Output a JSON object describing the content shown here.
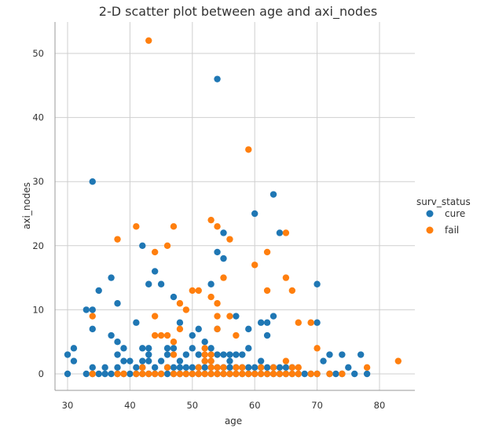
{
  "chart_data": {
    "type": "scatter",
    "title": "2-D scatter plot between age and axi_nodes",
    "xlabel": "age",
    "ylabel": "axi_nodes",
    "xlim": [
      28,
      86
    ],
    "ylim": [
      -2.5,
      55
    ],
    "xticks": [
      30,
      40,
      50,
      60,
      70,
      80
    ],
    "yticks": [
      0,
      10,
      20,
      30,
      40,
      50
    ],
    "grid": true,
    "legend": {
      "title": "surv_status",
      "placement": "right"
    },
    "series": [
      {
        "name": "cure",
        "color": "#1f77b4",
        "points": [
          [
            30,
            0
          ],
          [
            30,
            3
          ],
          [
            31,
            2
          ],
          [
            31,
            4
          ],
          [
            33,
            0
          ],
          [
            33,
            10
          ],
          [
            34,
            0
          ],
          [
            34,
            1
          ],
          [
            34,
            7
          ],
          [
            34,
            10
          ],
          [
            34,
            30
          ],
          [
            35,
            0
          ],
          [
            35,
            13
          ],
          [
            36,
            0
          ],
          [
            36,
            1
          ],
          [
            37,
            0
          ],
          [
            37,
            6
          ],
          [
            37,
            15
          ],
          [
            38,
            0
          ],
          [
            38,
            1
          ],
          [
            38,
            3
          ],
          [
            38,
            5
          ],
          [
            38,
            11
          ],
          [
            39,
            0
          ],
          [
            39,
            2
          ],
          [
            39,
            4
          ],
          [
            40,
            0
          ],
          [
            40,
            2
          ],
          [
            41,
            0
          ],
          [
            41,
            1
          ],
          [
            41,
            8
          ],
          [
            42,
            0
          ],
          [
            42,
            1
          ],
          [
            42,
            2
          ],
          [
            42,
            4
          ],
          [
            42,
            20
          ],
          [
            43,
            0
          ],
          [
            43,
            2
          ],
          [
            43,
            3
          ],
          [
            43,
            4
          ],
          [
            43,
            14
          ],
          [
            44,
            0
          ],
          [
            44,
            1
          ],
          [
            44,
            16
          ],
          [
            45,
            0
          ],
          [
            45,
            2
          ],
          [
            45,
            14
          ],
          [
            46,
            0
          ],
          [
            46,
            1
          ],
          [
            46,
            3
          ],
          [
            46,
            4
          ],
          [
            47,
            0
          ],
          [
            47,
            1
          ],
          [
            47,
            4
          ],
          [
            47,
            12
          ],
          [
            48,
            0
          ],
          [
            48,
            1
          ],
          [
            48,
            2
          ],
          [
            48,
            8
          ],
          [
            49,
            0
          ],
          [
            49,
            1
          ],
          [
            49,
            3
          ],
          [
            50,
            0
          ],
          [
            50,
            1
          ],
          [
            50,
            4
          ],
          [
            50,
            6
          ],
          [
            51,
            0
          ],
          [
            51,
            1
          ],
          [
            51,
            3
          ],
          [
            51,
            7
          ],
          [
            52,
            0
          ],
          [
            52,
            1
          ],
          [
            52,
            2
          ],
          [
            52,
            5
          ],
          [
            53,
            0
          ],
          [
            53,
            1
          ],
          [
            53,
            2
          ],
          [
            53,
            4
          ],
          [
            53,
            14
          ],
          [
            54,
            0
          ],
          [
            54,
            1
          ],
          [
            54,
            3
          ],
          [
            54,
            7
          ],
          [
            54,
            19
          ],
          [
            54,
            46
          ],
          [
            55,
            0
          ],
          [
            55,
            1
          ],
          [
            55,
            3
          ],
          [
            55,
            18
          ],
          [
            55,
            22
          ],
          [
            56,
            0
          ],
          [
            56,
            1
          ],
          [
            56,
            2
          ],
          [
            56,
            3
          ],
          [
            57,
            0
          ],
          [
            57,
            1
          ],
          [
            57,
            3
          ],
          [
            57,
            9
          ],
          [
            58,
            0
          ],
          [
            58,
            1
          ],
          [
            58,
            3
          ],
          [
            59,
            0
          ],
          [
            59,
            1
          ],
          [
            59,
            4
          ],
          [
            59,
            7
          ],
          [
            60,
            0
          ],
          [
            60,
            1
          ],
          [
            60,
            25
          ],
          [
            61,
            0
          ],
          [
            61,
            1
          ],
          [
            61,
            2
          ],
          [
            61,
            8
          ],
          [
            62,
            0
          ],
          [
            62,
            1
          ],
          [
            62,
            6
          ],
          [
            62,
            8
          ],
          [
            63,
            0
          ],
          [
            63,
            1
          ],
          [
            63,
            9
          ],
          [
            63,
            28
          ],
          [
            64,
            0
          ],
          [
            64,
            1
          ],
          [
            64,
            22
          ],
          [
            65,
            0
          ],
          [
            65,
            1
          ],
          [
            66,
            0
          ],
          [
            66,
            1
          ],
          [
            67,
            0
          ],
          [
            68,
            0
          ],
          [
            69,
            0
          ],
          [
            70,
            0
          ],
          [
            70,
            8
          ],
          [
            70,
            14
          ],
          [
            71,
            2
          ],
          [
            72,
            0
          ],
          [
            72,
            3
          ],
          [
            73,
            0
          ],
          [
            74,
            0
          ],
          [
            74,
            3
          ],
          [
            75,
            1
          ],
          [
            76,
            0
          ],
          [
            77,
            3
          ],
          [
            78,
            0
          ]
        ]
      },
      {
        "name": "fail",
        "color": "#ff7f0e",
        "points": [
          [
            34,
            0
          ],
          [
            34,
            9
          ],
          [
            38,
            0
          ],
          [
            38,
            21
          ],
          [
            39,
            0
          ],
          [
            41,
            0
          ],
          [
            41,
            23
          ],
          [
            42,
            0
          ],
          [
            42,
            1
          ],
          [
            43,
            0
          ],
          [
            43,
            52
          ],
          [
            44,
            0
          ],
          [
            44,
            6
          ],
          [
            44,
            9
          ],
          [
            44,
            19
          ],
          [
            45,
            0
          ],
          [
            45,
            6
          ],
          [
            46,
            1
          ],
          [
            46,
            6
          ],
          [
            46,
            20
          ],
          [
            47,
            0
          ],
          [
            47,
            3
          ],
          [
            47,
            5
          ],
          [
            47,
            23
          ],
          [
            48,
            0
          ],
          [
            48,
            7
          ],
          [
            48,
            11
          ],
          [
            49,
            0
          ],
          [
            49,
            10
          ],
          [
            50,
            0
          ],
          [
            50,
            13
          ],
          [
            51,
            0
          ],
          [
            51,
            1
          ],
          [
            51,
            13
          ],
          [
            52,
            0
          ],
          [
            52,
            2
          ],
          [
            52,
            3
          ],
          [
            52,
            4
          ],
          [
            53,
            0
          ],
          [
            53,
            1
          ],
          [
            53,
            2
          ],
          [
            53,
            3
          ],
          [
            53,
            12
          ],
          [
            53,
            24
          ],
          [
            54,
            0
          ],
          [
            54,
            1
          ],
          [
            54,
            7
          ],
          [
            54,
            9
          ],
          [
            54,
            11
          ],
          [
            54,
            23
          ],
          [
            55,
            0
          ],
          [
            55,
            1
          ],
          [
            55,
            15
          ],
          [
            56,
            0
          ],
          [
            56,
            9
          ],
          [
            56,
            21
          ],
          [
            57,
            0
          ],
          [
            57,
            1
          ],
          [
            57,
            6
          ],
          [
            58,
            0
          ],
          [
            58,
            1
          ],
          [
            59,
            0
          ],
          [
            59,
            35
          ],
          [
            60,
            0
          ],
          [
            60,
            17
          ],
          [
            61,
            0
          ],
          [
            61,
            1
          ],
          [
            62,
            0
          ],
          [
            62,
            13
          ],
          [
            62,
            19
          ],
          [
            63,
            0
          ],
          [
            63,
            1
          ],
          [
            64,
            0
          ],
          [
            65,
            0
          ],
          [
            65,
            2
          ],
          [
            65,
            15
          ],
          [
            65,
            22
          ],
          [
            66,
            0
          ],
          [
            66,
            1
          ],
          [
            66,
            13
          ],
          [
            67,
            0
          ],
          [
            67,
            1
          ],
          [
            67,
            8
          ],
          [
            69,
            0
          ],
          [
            69,
            8
          ],
          [
            70,
            0
          ],
          [
            70,
            4
          ],
          [
            72,
            0
          ],
          [
            74,
            0
          ],
          [
            78,
            1
          ],
          [
            83,
            2
          ]
        ]
      }
    ]
  }
}
